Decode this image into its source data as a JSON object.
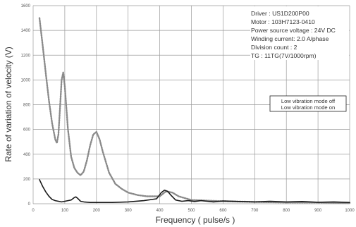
{
  "chart_data": {
    "type": "line",
    "xlabel": "Frequency ( pulse/s )",
    "ylabel": "Rate of variation of velocity (V)",
    "xlim": [
      0,
      1000
    ],
    "ylim": [
      0,
      1600
    ],
    "x_ticks": [
      "0",
      "100",
      "200",
      "300",
      "400",
      "500",
      "600",
      "700",
      "800",
      "900",
      "1000"
    ],
    "y_ticks": [
      "0",
      "200",
      "400",
      "600",
      "800",
      "1000",
      "1200",
      "1400",
      "1600"
    ],
    "grid": true,
    "specs": [
      "Driver : US1D200P00",
      "Motor : 103H7123-0410",
      "Power source voltage : 24V DC",
      "Winding current: 2.0 A/phase",
      "Division count : 2",
      "TG : 11TG(7V/1000rpm)"
    ],
    "legend_position": "right",
    "series": [
      {
        "name": "Low vibration mode off",
        "style": "dotted",
        "color": "#8a8a8a",
        "x": [
          20,
          30,
          40,
          50,
          60,
          70,
          75,
          80,
          85,
          90,
          95,
          100,
          110,
          120,
          130,
          140,
          150,
          160,
          170,
          180,
          190,
          200,
          210,
          220,
          240,
          260,
          280,
          300,
          330,
          360,
          400,
          420,
          440,
          460,
          500,
          600,
          700,
          800,
          900,
          1000
        ],
        "values": [
          1500,
          1280,
          1050,
          830,
          650,
          520,
          490,
          560,
          780,
          1000,
          1060,
          950,
          600,
          380,
          290,
          250,
          230,
          260,
          350,
          470,
          560,
          580,
          520,
          420,
          250,
          160,
          120,
          90,
          70,
          60,
          60,
          100,
          90,
          60,
          30,
          20,
          15,
          10,
          10,
          5
        ]
      },
      {
        "name": "Low vibration mode on",
        "style": "solid",
        "color": "#1a1a1a",
        "x": [
          20,
          30,
          40,
          50,
          60,
          70,
          80,
          90,
          100,
          110,
          120,
          130,
          135,
          140,
          150,
          160,
          180,
          200,
          250,
          300,
          350,
          390,
          405,
          415,
          425,
          435,
          450,
          470,
          490,
          510,
          530,
          550,
          570,
          600,
          650,
          700,
          750,
          800,
          850,
          900,
          950,
          1000
        ],
        "values": [
          195,
          140,
          95,
          60,
          35,
          25,
          20,
          15,
          20,
          25,
          30,
          50,
          55,
          45,
          20,
          15,
          10,
          10,
          10,
          15,
          25,
          40,
          90,
          110,
          100,
          70,
          30,
          20,
          25,
          18,
          25,
          20,
          15,
          22,
          18,
          15,
          20,
          15,
          18,
          12,
          15,
          10
        ]
      }
    ]
  }
}
